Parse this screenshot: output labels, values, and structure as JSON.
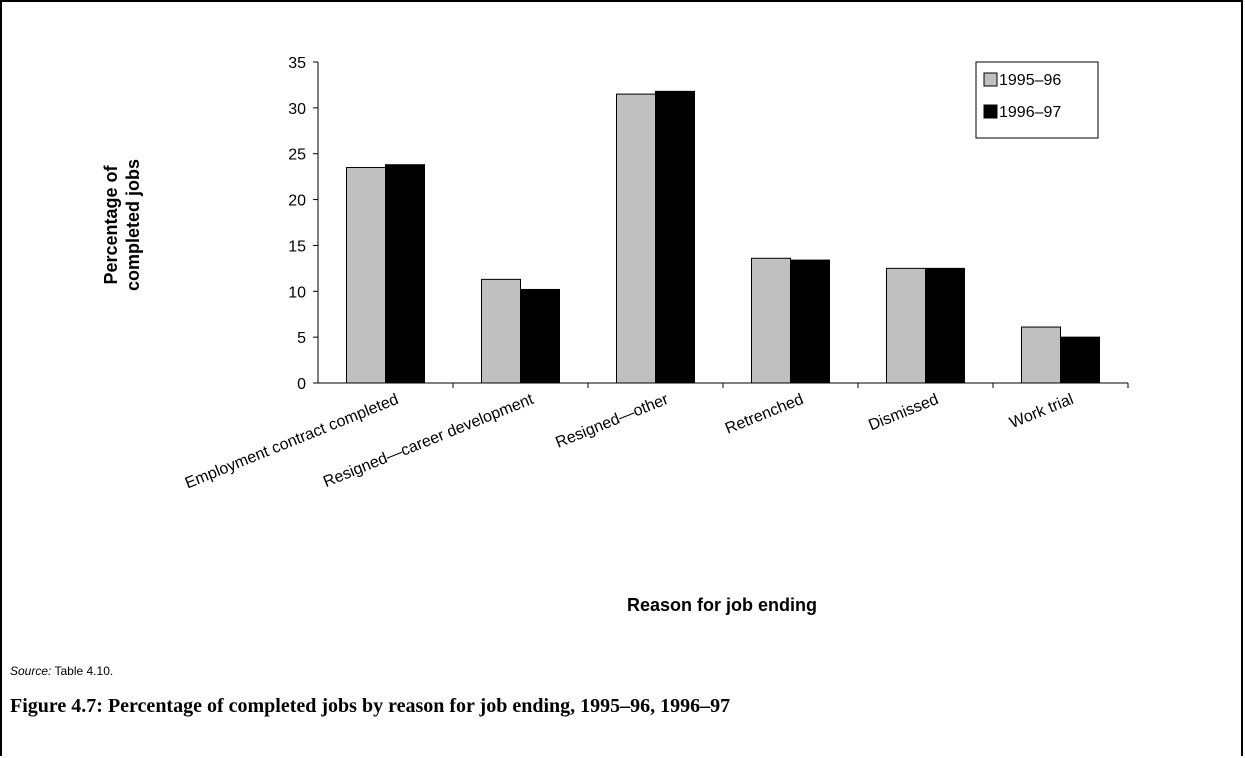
{
  "chart_data": {
    "type": "bar",
    "categories": [
      "Employment contract completed",
      "Resigned—career development",
      "Resigned—other",
      "Retrenched",
      "Dismissed",
      "Work trial"
    ],
    "series": [
      {
        "name": "1995–96",
        "color": "#c0c0c0",
        "values": [
          23.5,
          11.3,
          31.5,
          13.6,
          12.5,
          6.1
        ]
      },
      {
        "name": "1996–97",
        "color": "#000000",
        "values": [
          23.8,
          10.2,
          31.8,
          13.4,
          12.5,
          5.0
        ]
      }
    ],
    "xlabel": "Reason for job ending",
    "ylabel_lines": [
      "Percentage of",
      "completed jobs"
    ],
    "ylim": [
      0,
      35
    ],
    "yticks": [
      "0",
      "5",
      "10",
      "15",
      "20",
      "25",
      "30",
      "35"
    ],
    "grid": false,
    "legend_position": "top-right"
  },
  "source": {
    "label": "Source:",
    "text": "Table 4.10."
  },
  "caption": "Figure 4.7: Percentage of completed jobs by reason for job ending, 1995–96, 1996–97"
}
